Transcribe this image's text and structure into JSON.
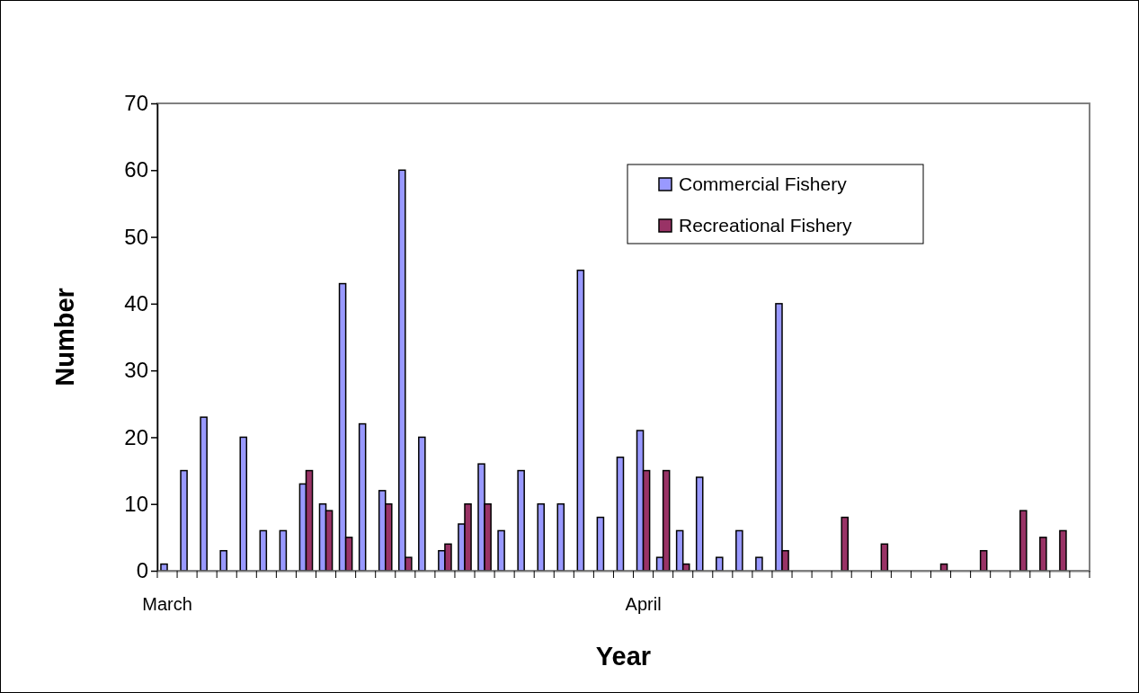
{
  "chart_data": {
    "type": "bar",
    "xlabel": "Year",
    "ylabel": "Number",
    "categories": [
      "March",
      null,
      null,
      null,
      null,
      null,
      null,
      null,
      null,
      null,
      null,
      null,
      null,
      null,
      null,
      null,
      null,
      null,
      null,
      null,
      null,
      null,
      null,
      null,
      "April",
      null,
      null,
      null,
      null,
      null,
      null,
      null,
      null,
      null,
      null,
      null,
      null,
      null,
      null,
      null,
      null,
      null,
      null,
      null,
      null,
      null,
      null
    ],
    "series": [
      {
        "name": "Commercial Fishery",
        "color": "#9999ff",
        "values": [
          1,
          15,
          23,
          3,
          20,
          6,
          6,
          13,
          10,
          43,
          22,
          12,
          60,
          20,
          3,
          7,
          16,
          6,
          15,
          10,
          10,
          45,
          8,
          17,
          21,
          2,
          6,
          14,
          2,
          6,
          2,
          40,
          null,
          null,
          null,
          null,
          null,
          null,
          null,
          null,
          null,
          null,
          null,
          null,
          null,
          null,
          null
        ]
      },
      {
        "name": "Recreational Fishery",
        "color": "#993366",
        "values": [
          null,
          null,
          null,
          null,
          null,
          null,
          null,
          15,
          9,
          5,
          null,
          10,
          2,
          null,
          4,
          10,
          10,
          null,
          null,
          null,
          null,
          null,
          null,
          null,
          15,
          15,
          1,
          null,
          null,
          null,
          null,
          3,
          null,
          null,
          8,
          null,
          4,
          null,
          null,
          1,
          null,
          3,
          null,
          9,
          5,
          6,
          null
        ]
      }
    ],
    "ylim": [
      0,
      70
    ],
    "yticks": [
      0,
      10,
      20,
      30,
      40,
      50,
      60,
      70
    ],
    "grid": false,
    "legend": "top right"
  }
}
